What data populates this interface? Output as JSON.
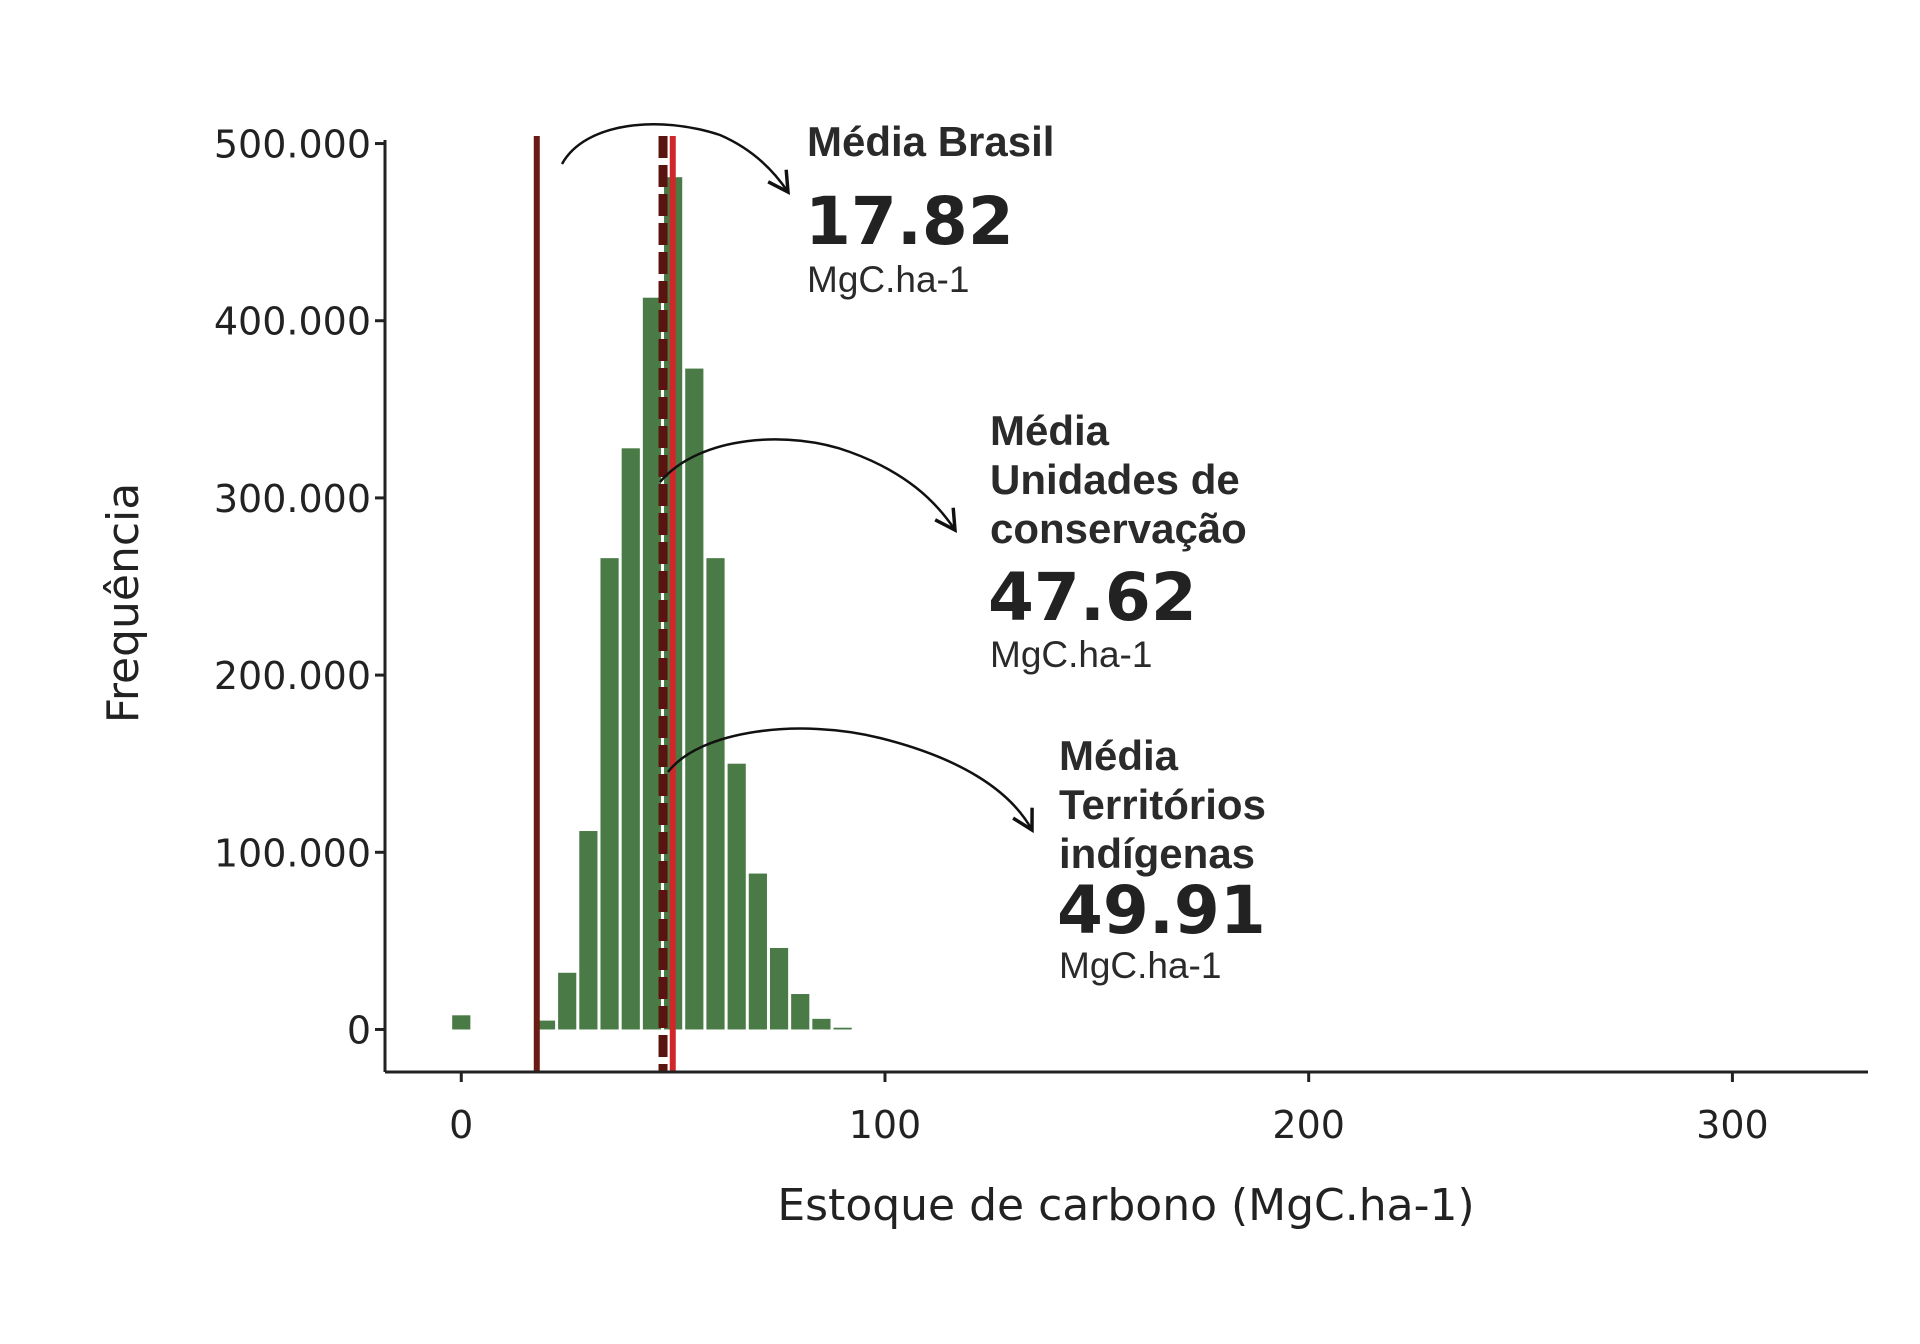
{
  "chart_data": {
    "type": "bar",
    "subtype": "histogram",
    "xlabel": "Estoque de carbono (MgC.ha-1)",
    "ylabel": "Frequência",
    "xlim": [
      -18,
      332
    ],
    "ylim": [
      -24000,
      502000
    ],
    "x_ticks": [
      {
        "value": 0,
        "label": "0"
      },
      {
        "value": 100,
        "label": "100"
      },
      {
        "value": 200,
        "label": "200"
      },
      {
        "value": 300,
        "label": "300"
      }
    ],
    "y_ticks": [
      {
        "value": 0,
        "label": "0"
      },
      {
        "value": 100000,
        "label": "100.000"
      },
      {
        "value": 200000,
        "label": "200.000"
      },
      {
        "value": 300000,
        "label": "300.000"
      },
      {
        "value": 400000,
        "label": "400.000"
      },
      {
        "value": 500000,
        "label": "500.000"
      }
    ],
    "grid": false,
    "bar_color": "#4a7a45",
    "bin_width": 5,
    "bins": [
      {
        "x": 0,
        "count": 8000
      },
      {
        "x": 20,
        "count": 5000
      },
      {
        "x": 25,
        "count": 32000
      },
      {
        "x": 30,
        "count": 112000
      },
      {
        "x": 35,
        "count": 266000
      },
      {
        "x": 40,
        "count": 328000
      },
      {
        "x": 45,
        "count": 413000
      },
      {
        "x": 50,
        "count": 481000
      },
      {
        "x": 55,
        "count": 373000
      },
      {
        "x": 60,
        "count": 266000
      },
      {
        "x": 65,
        "count": 150000
      },
      {
        "x": 70,
        "count": 88000
      },
      {
        "x": 75,
        "count": 46000
      },
      {
        "x": 80,
        "count": 20000
      },
      {
        "x": 85,
        "count": 6000
      },
      {
        "x": 90,
        "count": 1000
      }
    ],
    "reference_lines": [
      {
        "x": 17.82,
        "style": "solid",
        "color": "#6b1a14"
      },
      {
        "x": 47.62,
        "style": "dashed",
        "color": "#5a1410"
      },
      {
        "x": 49.91,
        "style": "solid",
        "color": "#d0282a"
      }
    ],
    "annotations": [
      {
        "lines": [
          "Média Brasil"
        ],
        "value": "17.82",
        "unit": "MgC.ha-1"
      },
      {
        "lines": [
          "Média",
          "Unidades de",
          "conservação"
        ],
        "value": "47.62",
        "unit": "MgC.ha-1"
      },
      {
        "lines": [
          "Média",
          "Territórios",
          "indígenas"
        ],
        "value": "49.91",
        "unit": "MgC.ha-1"
      }
    ]
  }
}
